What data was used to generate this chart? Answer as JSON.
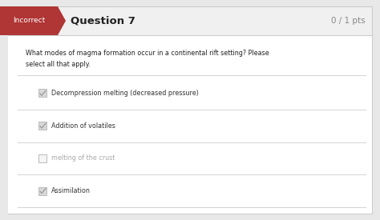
{
  "fig_width": 4.74,
  "fig_height": 2.75,
  "dpi": 100,
  "bg_color": "#e8e8e8",
  "content_bg": "#ffffff",
  "header_bg": "#f0f0f0",
  "incorrect_label": "Incorrect",
  "incorrect_bg": "#b03535",
  "incorrect_text_color": "#ffffff",
  "question_label": "Question 7",
  "score_label": "0 / 1 pts",
  "question_text_line1": "What modes of magma formation occur in a continental rift setting? Please",
  "question_text_line2": "select all that apply.",
  "options": [
    {
      "text": "Decompression melting (decreased pressure)",
      "checked": true,
      "grayed": false
    },
    {
      "text": "Addition of volatiles",
      "checked": true,
      "grayed": false
    },
    {
      "text": "melting of the crust",
      "checked": false,
      "grayed": true
    },
    {
      "text": "Assimilation",
      "checked": true,
      "grayed": false
    }
  ],
  "header_line_color": "#cccccc",
  "divider_color": "#cccccc",
  "check_border_color": "#bbbbbb",
  "check_fill_checked": "#d8d8d8",
  "check_fill_unchecked": "#f5f5f5",
  "check_mark_color": "#999999",
  "option_text_color": "#333333",
  "grayed_text_color": "#aaaaaa",
  "question_text_color": "#222222",
  "question_label_color": "#222222",
  "score_color": "#888888",
  "outer_border_color": "#cccccc"
}
